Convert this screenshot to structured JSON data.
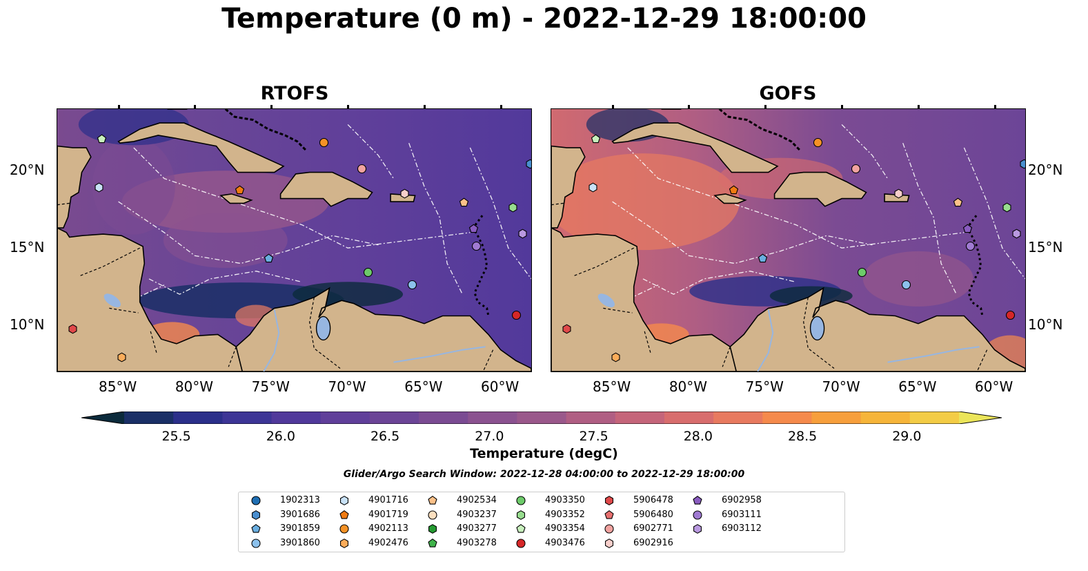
{
  "title": "Temperature (0 m) - 2022-12-29 18:00:00",
  "panels": [
    {
      "name": "RTOFS"
    },
    {
      "name": "GOFS"
    }
  ],
  "map_extent": {
    "lon": [
      -89,
      -58
    ],
    "lat": [
      7,
      24
    ]
  },
  "x_ticks": [
    "85°W",
    "80°W",
    "75°W",
    "70°W",
    "65°W",
    "60°W"
  ],
  "x_tick_lons": [
    -85,
    -80,
    -75,
    -70,
    -65,
    -60
  ],
  "y_ticks": [
    "20°N",
    "15°N",
    "10°N"
  ],
  "y_tick_lats": [
    20,
    15,
    10
  ],
  "colorbar": {
    "label": "Temperature (degC)",
    "min": 25.25,
    "max": 29.25,
    "ticks": [
      "25.5",
      "26.0",
      "26.5",
      "27.0",
      "27.5",
      "28.0",
      "28.5",
      "29.0"
    ],
    "tick_values": [
      25.5,
      26.0,
      26.5,
      27.0,
      27.5,
      28.0,
      28.5,
      29.0
    ],
    "colors": [
      "#0b2a3b",
      "#1a2f66",
      "#2b2f8a",
      "#3d3596",
      "#51399b",
      "#603f9a",
      "#6c4597",
      "#7b4b93",
      "#8b5290",
      "#9a588b",
      "#b05e83",
      "#c5657a",
      "#d86d6d",
      "#e87a5f",
      "#f58a4c",
      "#f79f3c",
      "#f6b53a",
      "#f3cc46",
      "#ebe55a"
    ],
    "extend": "both"
  },
  "search_window": "Glider/Argo Search Window: 2022-12-28 04:00:00 to 2022-12-29 18:00:00",
  "colors": {
    "land": "#d2b48c",
    "ocean_mid": "#6a4a98",
    "river": "#97b6e1"
  },
  "floats": [
    {
      "id": "1902313",
      "shape": "circle",
      "color": "#1f6fb4"
    },
    {
      "id": "3901686",
      "shape": "hexagon",
      "color": "#4a8fd0"
    },
    {
      "id": "3901859",
      "shape": "pentagon",
      "color": "#6aaee0"
    },
    {
      "id": "3901860",
      "shape": "circle",
      "color": "#8cc1ec"
    },
    {
      "id": "4901716",
      "shape": "hexagon",
      "color": "#c9e2f7"
    },
    {
      "id": "4901719",
      "shape": "pentagon",
      "color": "#f07b12"
    },
    {
      "id": "4902113",
      "shape": "circle",
      "color": "#f59226"
    },
    {
      "id": "4902476",
      "shape": "hexagon",
      "color": "#fbac5a"
    },
    {
      "id": "4902534",
      "shape": "pentagon",
      "color": "#fdc189"
    },
    {
      "id": "4903237",
      "shape": "circle",
      "color": "#fde0c0"
    },
    {
      "id": "4903277",
      "shape": "hexagon",
      "color": "#249a31"
    },
    {
      "id": "4903278",
      "shape": "pentagon",
      "color": "#3fb34a"
    },
    {
      "id": "4903350",
      "shape": "circle",
      "color": "#6dcb6a"
    },
    {
      "id": "4903352",
      "shape": "hexagon",
      "color": "#98dd8f"
    },
    {
      "id": "4903354",
      "shape": "pentagon",
      "color": "#c8f0bd"
    },
    {
      "id": "4903476",
      "shape": "circle",
      "color": "#d62728"
    },
    {
      "id": "5906478",
      "shape": "hexagon",
      "color": "#e0494a"
    },
    {
      "id": "5906480",
      "shape": "pentagon",
      "color": "#e8706f"
    },
    {
      "id": "6902771",
      "shape": "circle",
      "color": "#f2a3a0"
    },
    {
      "id": "6902916",
      "shape": "hexagon",
      "color": "#f8cfcb"
    },
    {
      "id": "6902958",
      "shape": "pentagon",
      "color": "#8a5cc0"
    },
    {
      "id": "6903111",
      "shape": "circle",
      "color": "#a07ad2"
    },
    {
      "id": "6903112",
      "shape": "hexagon",
      "color": "#b999e0"
    }
  ],
  "float_positions": [
    {
      "id": "4903354",
      "lon": -86.1,
      "lat": 22.1
    },
    {
      "id": "4901716",
      "lon": -86.3,
      "lat": 19.0
    },
    {
      "id": "4902113",
      "lon": -71.6,
      "lat": 21.9
    },
    {
      "id": "6902771",
      "lon": -69.1,
      "lat": 20.2
    },
    {
      "id": "4901719",
      "lon": -77.1,
      "lat": 18.8
    },
    {
      "id": "6902916",
      "lon": -66.3,
      "lat": 18.6
    },
    {
      "id": "4902534",
      "lon": -62.4,
      "lat": 18.0
    },
    {
      "id": "4903352",
      "lon": -59.2,
      "lat": 17.7
    },
    {
      "id": "3901686",
      "lon": -58.1,
      "lat": 20.5
    },
    {
      "id": "6903112",
      "lon": -58.6,
      "lat": 16.0
    },
    {
      "id": "6902958",
      "lon": -61.8,
      "lat": 16.3
    },
    {
      "id": "6903111",
      "lon": -61.6,
      "lat": 15.2
    },
    {
      "id": "3901859",
      "lon": -75.2,
      "lat": 14.4
    },
    {
      "id": "4903350",
      "lon": -68.7,
      "lat": 13.5
    },
    {
      "id": "3901860",
      "lon": -65.8,
      "lat": 12.7
    },
    {
      "id": "4903476",
      "lon": -59.0,
      "lat": 10.7
    },
    {
      "id": "5906478",
      "lon": -88.0,
      "lat": 9.8
    },
    {
      "id": "4902476",
      "lon": -84.8,
      "lat": 8.0
    }
  ]
}
